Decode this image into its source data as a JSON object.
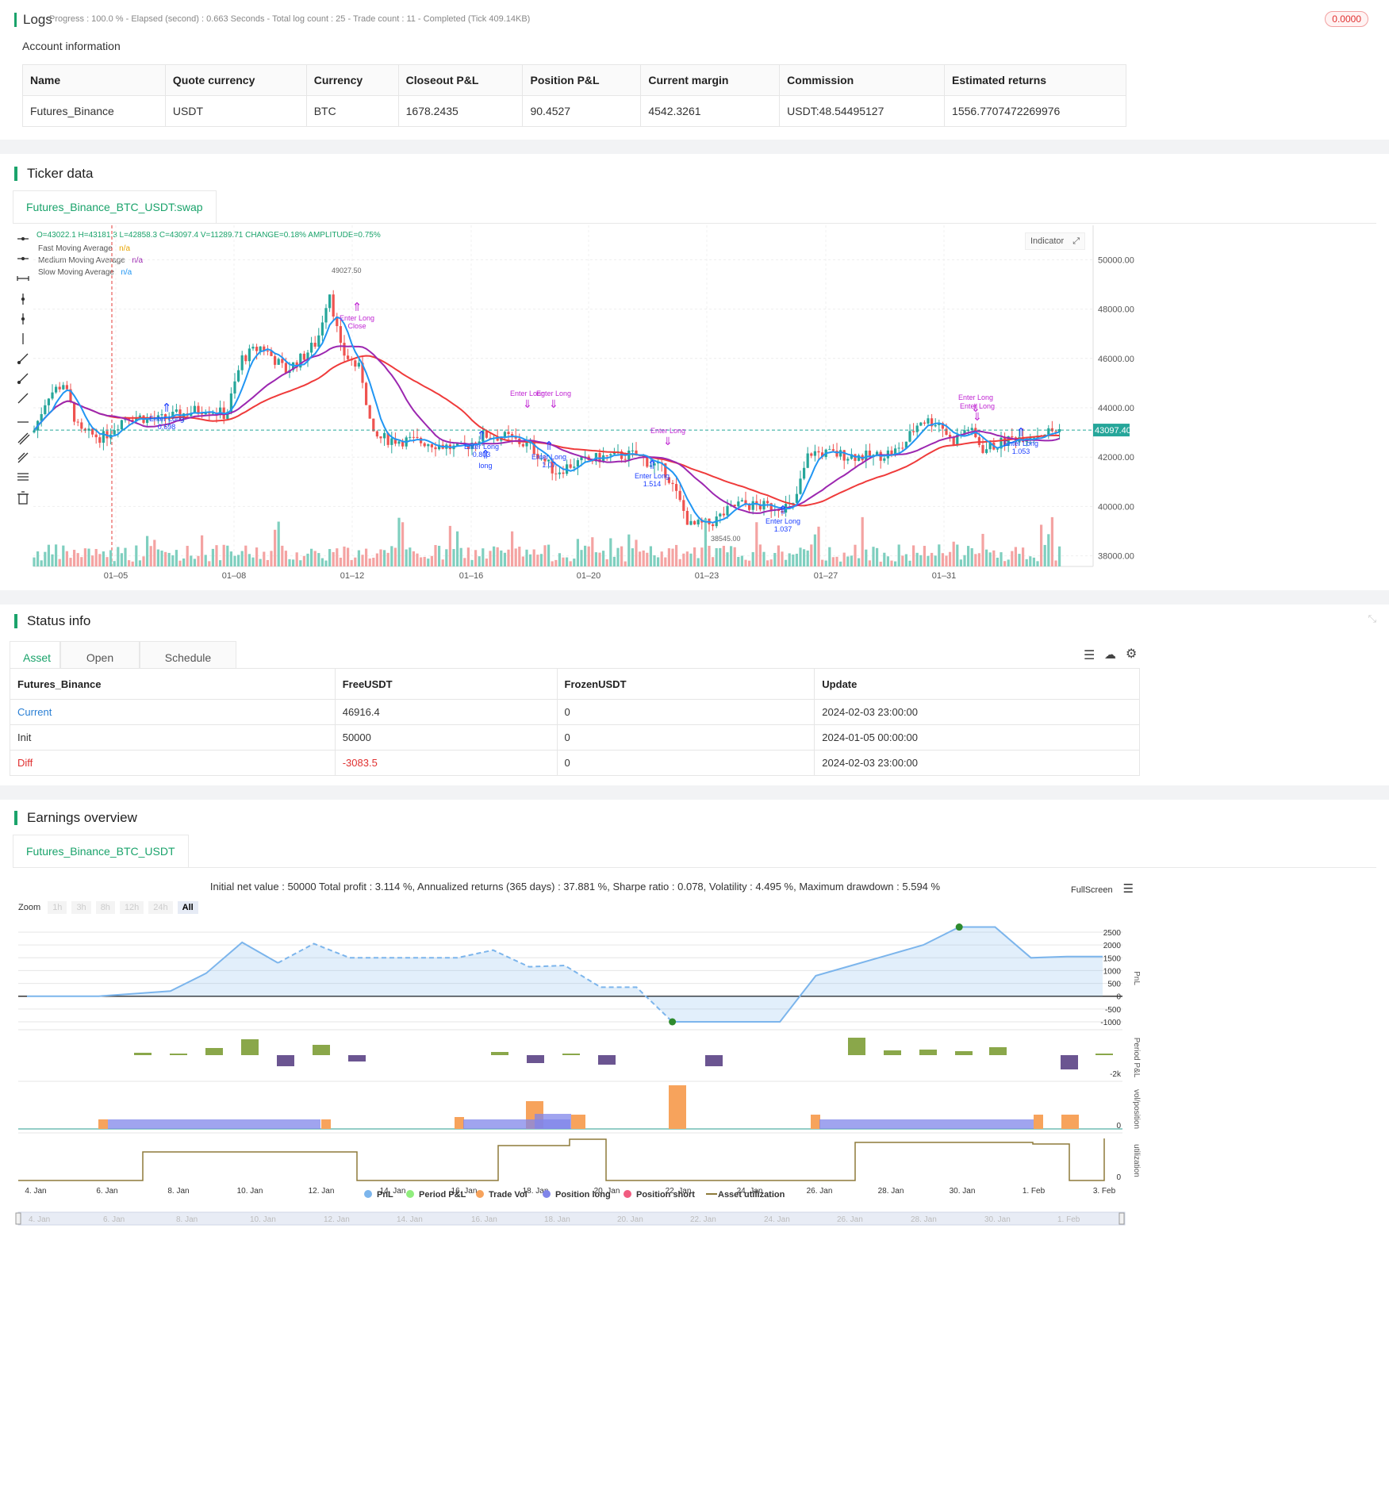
{
  "logs": {
    "title": "Logs",
    "progress_text": "Progress : 100.0 % - Elapsed (second) : 0.663  Seconds - Total log count : 25 - Trade count : 11 - Completed (Tick 409.14KB)",
    "badge": "0.0000",
    "account_title": "Account information",
    "columns": [
      "Name",
      "Quote currency",
      "Currency",
      "Closeout P&L",
      "Position P&L",
      "Current margin",
      "Commission",
      "Estimated returns"
    ],
    "row": [
      "Futures_Binance",
      "USDT",
      "BTC",
      "1678.2435",
      "90.4527",
      "4542.3261",
      "USDT:48.54495127",
      "1556.7707472269976"
    ]
  },
  "ticker": {
    "title": "Ticker data",
    "tab": "Futures_Binance_BTC_USDT:swap",
    "ohlc_text": "O=43022.1 H=43181.3 L=42858.3 C=43097.4 V=11289.71 CHANGE=0.18% AMPLITUDE=0.75%",
    "legend": [
      {
        "name": "Fast Moving Average",
        "value": "n/a",
        "color": "#e8a400"
      },
      {
        "name": "Medium Moving Average",
        "value": "n/a",
        "color": "#9c27b0"
      },
      {
        "name": "Slow Moving Average",
        "value": "n/a",
        "color": "#2196f3"
      }
    ],
    "indicator_button": "Indicator",
    "y_ticks": [
      "50000.00",
      "48000.00",
      "46000.00",
      "44000.00",
      "42000.00",
      "40000.00",
      "38000.00"
    ],
    "x_ticks": [
      "01–05",
      "01–08",
      "01–12",
      "01–16",
      "01–20",
      "01–23",
      "01–27",
      "01–31"
    ],
    "current_price": "43097.40",
    "high_label": "49027.50",
    "low_label": "38545.00",
    "annotations": [
      {
        "text": "Enter Long",
        "sub": "0.698"
      },
      {
        "text": "Enter Long",
        "sub": "Close"
      },
      {
        "text": "Enter Long",
        "sub": "0.803"
      },
      {
        "text": "long",
        "sub": ""
      },
      {
        "text": "Enter Long",
        "sub": "1.07"
      },
      {
        "text": "Enter Long",
        "sub": "1.514"
      },
      {
        "text": "Enter Long",
        "sub": "1.037"
      },
      {
        "text": "Enter Long",
        "sub": "1.053"
      }
    ]
  },
  "status": {
    "title": "Status info",
    "tabs": [
      "Asset",
      "Open orders",
      "Schedule orders"
    ],
    "columns": [
      "Futures_Binance",
      "FreeUSDT",
      "FrozenUSDT",
      "Update"
    ],
    "rows": [
      {
        "name": "Current",
        "free": "46916.4",
        "frozen": "0",
        "update": "2024-02-03 23:00:00",
        "color": "#2a7fd4"
      },
      {
        "name": "Init",
        "free": "50000",
        "frozen": "0",
        "update": "2024-01-05 00:00:00",
        "color": "#333333"
      },
      {
        "name": "Diff",
        "free": "-3083.5",
        "frozen": "0",
        "update": "2024-02-03 23:00:00",
        "color": "#e03030"
      }
    ]
  },
  "earnings": {
    "title": "Earnings overview",
    "tab": "Futures_Binance_BTC_USDT",
    "summary": "Initial net value : 50000 Total profit : 3.114 %, Annualized returns (365 days) : 37.881 %, Sharpe ratio : 0.078, Volatility : 4.495 %, Maximum drawdown : 5.594 %",
    "fullscreen": "FullScreen",
    "zoom_label": "Zoom",
    "zoom_options": [
      "1h",
      "3h",
      "8h",
      "12h",
      "24h",
      "All"
    ],
    "pnl_ticks": [
      "2500",
      "2000",
      "1500",
      "1000",
      "500",
      "0",
      "-500",
      "-1000"
    ],
    "pnl_axis": "PnL",
    "period_axis": "Period P&L",
    "period_tick": "-2k",
    "vol_axis": "vol/position",
    "vol_tick": "0",
    "util_axis": "utilization",
    "util_tick": "0",
    "x_ticks": [
      "4. Jan",
      "6. Jan",
      "8. Jan",
      "10. Jan",
      "12. Jan",
      "14. Jan",
      "16. Jan",
      "18. Jan",
      "20. Jan",
      "22. Jan",
      "24. Jan",
      "26. Jan",
      "28. Jan",
      "30. Jan",
      "1. Feb",
      "3. Feb"
    ],
    "navigator_ticks": [
      "4. Jan",
      "6. Jan",
      "8. Jan",
      "10. Jan",
      "12. Jan",
      "14. Jan",
      "16. Jan",
      "18. Jan",
      "20. Jan",
      "22. Jan",
      "24. Jan",
      "26. Jan",
      "28. Jan",
      "30. Jan",
      "1. Feb"
    ],
    "legend": [
      {
        "name": "PnL",
        "color": "#7cb5ec"
      },
      {
        "name": "Period P&L",
        "color": "#90ed7d"
      },
      {
        "name": "Trade Vol",
        "color": "#f7a35c"
      },
      {
        "name": "Position long",
        "color": "#8085e9"
      },
      {
        "name": "Position short",
        "color": "#f15c80"
      },
      {
        "name": "Asset utilization",
        "color": "#8d7a3a"
      }
    ]
  },
  "chart_data": [
    {
      "type": "line",
      "title": "PnL",
      "x": [
        "4. Jan",
        "5. Jan",
        "6. Jan",
        "7. Jan",
        "8. Jan",
        "9. Jan",
        "10. Jan",
        "11. Jan",
        "12. Jan",
        "13. Jan",
        "14. Jan",
        "15. Jan",
        "16. Jan",
        "17. Jan",
        "18. Jan",
        "19. Jan",
        "20. Jan",
        "21. Jan",
        "22. Jan",
        "23. Jan",
        "24. Jan",
        "25. Jan",
        "26. Jan",
        "27. Jan",
        "28. Jan",
        "29. Jan",
        "30. Jan",
        "31. Jan",
        "1. Feb",
        "2. Feb",
        "3. Feb"
      ],
      "values": [
        0,
        0,
        0,
        100,
        200,
        900,
        2100,
        1300,
        2050,
        1500,
        1500,
        1500,
        1500,
        1800,
        1150,
        1200,
        350,
        350,
        -1000,
        -1000,
        -1000,
        -1000,
        800,
        1200,
        1600,
        2000,
        2700,
        2700,
        1500,
        1550,
        1550
      ],
      "ylim": [
        -1000,
        2700
      ]
    }
  ]
}
